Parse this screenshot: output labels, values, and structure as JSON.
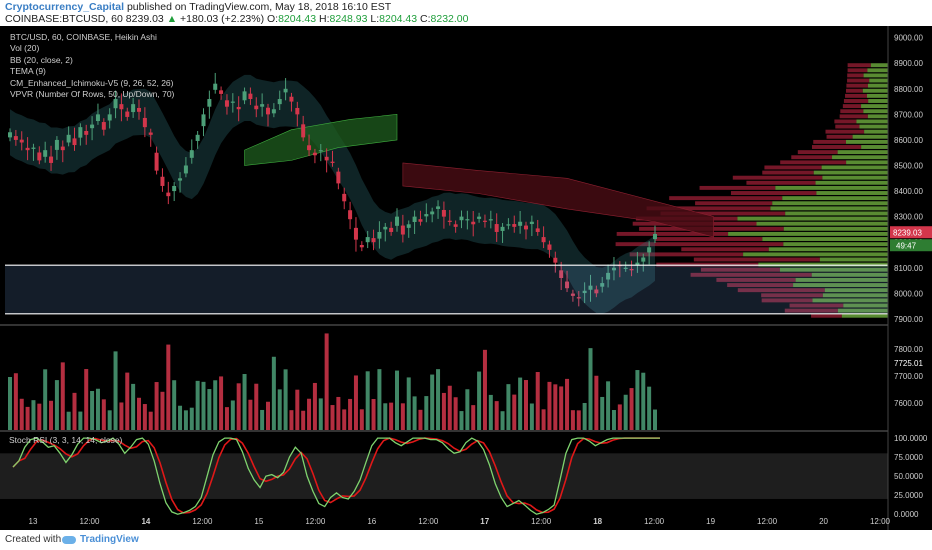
{
  "header": {
    "author": "Cryptocurrency_Capital",
    "published": "published on TradingView.com, May 18, 2018 16:10 EST",
    "symbol": "COINBASE:BTCUSD, 60",
    "last": "8239.03",
    "change_arrow": "▲",
    "change": "+180.03 (+2.23%)",
    "open_label": "O:",
    "open": "8204.43",
    "high_label": "H:",
    "high": "8248.93",
    "low_label": "L:",
    "low": "8204.43",
    "close_label": "C:",
    "close": "8232.00"
  },
  "indicators": [
    "BTC/USD, 60, COINBASE, Heikin Ashi",
    "Vol (20)",
    "BB (20, close, 2)",
    "TEMA (9)",
    "CM_Enhanced_Ichimoku-V5 (9, 26, 52, 26)",
    "VPVR (Number Of Rows, 50, Up/Down, 70)"
  ],
  "stoch_label": "Stoch RSI (3, 3, 14, 14, close)",
  "footer": {
    "created_with": "Created with",
    "brand": "TradingView"
  },
  "colors": {
    "up": "#4c9f78",
    "down": "#d3364b",
    "background": "#000000"
  },
  "chart_data": {
    "type": "candlestick",
    "price_axis": {
      "ticks": [
        "9000.00",
        "8900.00",
        "8800.00",
        "8700.00",
        "8600.00",
        "8500.00",
        "8400.00",
        "8300.00",
        "8200.00",
        "8100.00",
        "8000.00",
        "7900.00"
      ],
      "range": [
        7880,
        9030
      ]
    },
    "volume_axis": {
      "ticks": [
        "7800.00",
        "7700.00",
        "7600.00"
      ],
      "marker": "7725.01"
    },
    "stoch_axis": {
      "ticks": [
        "100.0000",
        "75.0000",
        "50.0000",
        "25.0000",
        "0.0000"
      ],
      "range": [
        -5,
        108
      ]
    },
    "x_ticks": [
      "13",
      "12:00",
      "14",
      "12:00",
      "15",
      "12:00",
      "16",
      "12:00",
      "17",
      "12:00",
      "18",
      "12:00",
      "19",
      "12:00",
      "20",
      "12:00"
    ],
    "bold_x_ticks": [
      "14",
      "17",
      "18"
    ],
    "last_price_label": "8239.03",
    "countdown_label": "49:47",
    "horizontal_levels": [
      8110,
      7920
    ],
    "channel_upper": [
      [
        8660,
        8965
      ],
      [
        8960,
        8620
      ]
    ],
    "channel_lower": [
      [
        8260,
        8615
      ],
      [
        8520,
        8615
      ]
    ],
    "candle_close_series": [
      8630,
      8600,
      8590,
      8560,
      8570,
      8520,
      8560,
      8510,
      8600,
      8560,
      8620,
      8580,
      8650,
      8620,
      8660,
      8700,
      8640,
      8700,
      8760,
      8720,
      8690,
      8740,
      8710,
      8650,
      8620,
      8480,
      8420,
      8380,
      8420,
      8450,
      8500,
      8560,
      8620,
      8700,
      8760,
      8820,
      8780,
      8730,
      8750,
      8720,
      8790,
      8760,
      8720,
      8740,
      8700,
      8720,
      8760,
      8800,
      8750,
      8700,
      8610,
      8560,
      8540,
      8560,
      8520,
      8510,
      8430,
      8360,
      8290,
      8210,
      8180,
      8220,
      8200,
      8240,
      8260,
      8240,
      8300,
      8230,
      8270,
      8300,
      8280,
      8310,
      8320,
      8340,
      8300,
      8280,
      8260,
      8300,
      8290,
      8270,
      8300,
      8280,
      8290,
      8240,
      8260,
      8270,
      8260,
      8280,
      8250,
      8280,
      8240,
      8200,
      8170,
      8120,
      8060,
      8020,
      7990,
      7980,
      8010,
      8030,
      8000,
      8040,
      8080,
      8100,
      8110,
      8100,
      8090,
      8120,
      8140,
      8180,
      8232
    ],
    "stoch_k_series": [
      62,
      70,
      88,
      98,
      100,
      95,
      88,
      90,
      80,
      68,
      78,
      92,
      100,
      100,
      98,
      94,
      96,
      100,
      92,
      80,
      88,
      98,
      100,
      92,
      70,
      40,
      15,
      3,
      0,
      2,
      5,
      10,
      22,
      50,
      78,
      95,
      100,
      100,
      98,
      82,
      60,
      45,
      35,
      50,
      52,
      48,
      55,
      75,
      88,
      80,
      50,
      30,
      14,
      10,
      22,
      28,
      22,
      20,
      30,
      45,
      68,
      90,
      100,
      100,
      100,
      94,
      90,
      95,
      100,
      100,
      100,
      98,
      98,
      94,
      86,
      80,
      82,
      94,
      100,
      96,
      85,
      65,
      40,
      22,
      10,
      14,
      18,
      12,
      5,
      0,
      2,
      6,
      12,
      45,
      80,
      98,
      100,
      100,
      96,
      90,
      94,
      98,
      100,
      100,
      100,
      100,
      100,
      100,
      100,
      100,
      100
    ]
  }
}
